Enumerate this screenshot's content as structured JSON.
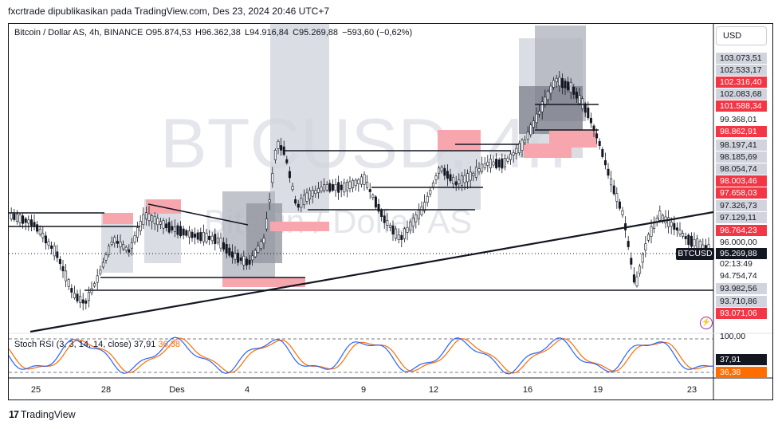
{
  "header": {
    "published": "fxcrtrade dipublikasikan pada TradingView.com, Des 23, 2024 20:46 UTC+7"
  },
  "legend": {
    "symbol": "Bitcoin / Dollar AS, 4h, BINANCE",
    "open": "O95.874,53",
    "high": "H96.362,38",
    "low": "L94.916,84",
    "close": "C95.269,88",
    "change": "−593,60 (−0,62%)"
  },
  "watermark": {
    "ticker": "BTCUSD, 4h",
    "name": "Bitcoin / Dollar AS"
  },
  "currency_button": "USD",
  "price_scale": [
    {
      "label": "103.073,51",
      "style": "dark"
    },
    {
      "label": "102.533,17",
      "style": "dark"
    },
    {
      "label": "102.316,40",
      "style": "red"
    },
    {
      "label": "102.083,68",
      "style": "dark"
    },
    {
      "label": "101.588,34",
      "style": "red"
    },
    {
      "label": "99.368,01",
      "style": "plain"
    },
    {
      "label": "98.862,91",
      "style": "red"
    },
    {
      "label": "98.197,41",
      "style": "dark"
    },
    {
      "label": "98.185,69",
      "style": "dark"
    },
    {
      "label": "98.054,74",
      "style": "dark"
    },
    {
      "label": "98.003,46",
      "style": "red"
    },
    {
      "label": "97.658,03",
      "style": "red"
    },
    {
      "label": "97.326,73",
      "style": "dark"
    },
    {
      "label": "97.129,11",
      "style": "dark"
    },
    {
      "label": "96.764,23",
      "style": "red"
    },
    {
      "label": "96.000,00",
      "style": "plain"
    },
    {
      "label": "94.754,74",
      "style": "plain"
    },
    {
      "label": "93.982,56",
      "style": "dark"
    },
    {
      "label": "93.710,86",
      "style": "dark"
    },
    {
      "label": "93.071,06",
      "style": "red"
    }
  ],
  "last_price": {
    "symbol": "BTCUSD",
    "price": "95.269,88",
    "countdown": "02:13:49"
  },
  "stoch": {
    "legend": "Stoch RSI (3, 3, 14, 14, close)",
    "k": "37,91",
    "d": "36,38",
    "scale_top": "100,00",
    "k_color": "#2962ff",
    "d_color": "#ff6d00"
  },
  "x_axis": [
    "25",
    "28",
    "Des",
    "4",
    "9",
    "12",
    "16",
    "19",
    "23"
  ],
  "footer": {
    "brand": "TradingView"
  },
  "colors": {
    "up": "#ffffff",
    "down": "#131722",
    "zone_red": "#f7a6ad",
    "zone_gray": "#d1d4dc",
    "alert": "#9c27b0"
  }
}
